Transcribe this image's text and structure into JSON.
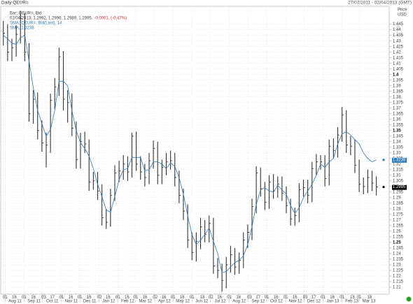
{
  "chart_data": {
    "type": "hlc",
    "title": "Daily QEUR=",
    "date_range": "27/07/2011 - 02/04/2013 (GMT)",
    "y_axis_title": "Price",
    "y_axis_unit": "USD",
    "legend": {
      "bar": "Bar; QEUR=, Bid",
      "quote": "01/04/2013, 1.2992, 1.2996, 1.2989, 1.2995,",
      "change": "-0.0061, (-0.47%)",
      "ma": "SMA; QEUR=, Bid(Last), 14",
      "ma_value": "SMA, 1.3238"
    },
    "x": [
      "2011-07-29",
      "2011-08-05",
      "2011-08-12",
      "2011-08-19",
      "2011-08-26",
      "2011-09-02",
      "2011-09-09",
      "2011-09-16",
      "2011-09-23",
      "2011-09-30",
      "2011-10-07",
      "2011-10-14",
      "2011-10-21",
      "2011-10-28",
      "2011-11-04",
      "2011-11-11",
      "2011-11-18",
      "2011-11-25",
      "2011-12-02",
      "2011-12-09",
      "2011-12-16",
      "2011-12-23",
      "2011-12-30",
      "2012-01-06",
      "2012-01-13",
      "2012-01-20",
      "2012-01-27",
      "2012-02-03",
      "2012-02-10",
      "2012-02-17",
      "2012-02-24",
      "2012-03-02",
      "2012-03-09",
      "2012-03-16",
      "2012-03-23",
      "2012-03-30",
      "2012-04-06",
      "2012-04-13",
      "2012-04-20",
      "2012-04-27",
      "2012-05-04",
      "2012-05-11",
      "2012-05-18",
      "2012-05-25",
      "2012-06-01",
      "2012-06-08",
      "2012-06-15",
      "2012-06-22",
      "2012-06-29",
      "2012-07-06",
      "2012-07-13",
      "2012-07-20",
      "2012-07-27",
      "2012-08-03",
      "2012-08-10",
      "2012-08-17",
      "2012-08-24",
      "2012-08-31",
      "2012-09-07",
      "2012-09-14",
      "2012-09-21",
      "2012-09-28",
      "2012-10-05",
      "2012-10-12",
      "2012-10-19",
      "2012-10-26",
      "2012-11-02",
      "2012-11-09",
      "2012-11-16",
      "2012-11-23",
      "2012-11-30",
      "2012-12-07",
      "2012-12-14",
      "2012-12-21",
      "2012-12-28",
      "2013-01-04",
      "2013-01-11",
      "2013-01-18",
      "2013-01-25",
      "2013-02-01",
      "2013-02-08",
      "2013-02-15",
      "2013-02-22",
      "2013-03-01",
      "2013-03-08",
      "2013-03-15",
      "2013-03-22",
      "2013-03-29"
    ],
    "series": [
      {
        "color": "#333333",
        "high": [
          1.448,
          1.445,
          1.432,
          1.444,
          1.457,
          1.455,
          1.428,
          1.386,
          1.384,
          1.359,
          1.348,
          1.383,
          1.397,
          1.424,
          1.421,
          1.386,
          1.383,
          1.358,
          1.348,
          1.349,
          1.342,
          1.313,
          1.313,
          1.302,
          1.28,
          1.298,
          1.319,
          1.323,
          1.328,
          1.327,
          1.348,
          1.349,
          1.327,
          1.32,
          1.33,
          1.341,
          1.34,
          1.324,
          1.33,
          1.332,
          1.33,
          1.314,
          1.298,
          1.284,
          1.259,
          1.259,
          1.272,
          1.27,
          1.274,
          1.272,
          1.236,
          1.231,
          1.237,
          1.247,
          1.245,
          1.241,
          1.259,
          1.266,
          1.289,
          1.318,
          1.317,
          1.304,
          1.31,
          1.311,
          1.309,
          1.309,
          1.3,
          1.289,
          1.281,
          1.303,
          1.306,
          1.306,
          1.322,
          1.329,
          1.328,
          1.328,
          1.342,
          1.343,
          1.353,
          1.371,
          1.368,
          1.345,
          1.342,
          1.324,
          1.308,
          1.315,
          1.314,
          1.309
        ],
        "low": [
          1.426,
          1.412,
          1.412,
          1.416,
          1.428,
          1.412,
          1.358,
          1.356,
          1.342,
          1.331,
          1.317,
          1.33,
          1.369,
          1.381,
          1.368,
          1.357,
          1.345,
          1.316,
          1.316,
          1.33,
          1.296,
          1.297,
          1.288,
          1.265,
          1.262,
          1.264,
          1.287,
          1.304,
          1.306,
          1.305,
          1.308,
          1.314,
          1.306,
          1.3,
          1.302,
          1.316,
          1.302,
          1.302,
          1.31,
          1.315,
          1.3,
          1.285,
          1.27,
          1.245,
          1.234,
          1.233,
          1.244,
          1.25,
          1.25,
          1.222,
          1.218,
          1.206,
          1.209,
          1.223,
          1.221,
          1.222,
          1.227,
          1.245,
          1.252,
          1.276,
          1.291,
          1.279,
          1.28,
          1.289,
          1.29,
          1.287,
          1.276,
          1.265,
          1.265,
          1.268,
          1.291,
          1.285,
          1.286,
          1.31,
          1.315,
          1.3,
          1.301,
          1.325,
          1.326,
          1.34,
          1.33,
          1.328,
          1.312,
          1.295,
          1.293,
          1.294,
          1.296,
          1.292
        ],
        "close": [
          1.437,
          1.42,
          1.424,
          1.436,
          1.45,
          1.42,
          1.365,
          1.378,
          1.35,
          1.339,
          1.337,
          1.377,
          1.389,
          1.416,
          1.378,
          1.375,
          1.352,
          1.324,
          1.34,
          1.338,
          1.304,
          1.305,
          1.296,
          1.272,
          1.268,
          1.292,
          1.312,
          1.314,
          1.32,
          1.313,
          1.345,
          1.32,
          1.313,
          1.308,
          1.323,
          1.334,
          1.31,
          1.317,
          1.322,
          1.323,
          1.308,
          1.292,
          1.278,
          1.252,
          1.241,
          1.251,
          1.264,
          1.257,
          1.267,
          1.229,
          1.225,
          1.216,
          1.23,
          1.239,
          1.228,
          1.234,
          1.252,
          1.259,
          1.282,
          1.312,
          1.298,
          1.286,
          1.304,
          1.296,
          1.302,
          1.294,
          1.283,
          1.271,
          1.274,
          1.297,
          1.299,
          1.292,
          1.316,
          1.322,
          1.322,
          1.307,
          1.336,
          1.332,
          1.346,
          1.364,
          1.337,
          1.336,
          1.319,
          1.302,
          1.3,
          1.308,
          1.303,
          1.2995
        ]
      }
    ],
    "ma": {
      "color": "#2b7bb9",
      "values": [
        1.435,
        1.432,
        1.428,
        1.427,
        1.433,
        1.435,
        1.412,
        1.388,
        1.368,
        1.356,
        1.345,
        1.351,
        1.368,
        1.394,
        1.394,
        1.39,
        1.368,
        1.35,
        1.339,
        1.334,
        1.327,
        1.316,
        1.302,
        1.291,
        1.279,
        1.277,
        1.291,
        1.306,
        1.315,
        1.316,
        1.326,
        1.326,
        1.326,
        1.314,
        1.315,
        1.322,
        1.322,
        1.32,
        1.316,
        1.321,
        1.318,
        1.308,
        1.293,
        1.274,
        1.257,
        1.248,
        1.252,
        1.257,
        1.263,
        1.251,
        1.24,
        1.223,
        1.224,
        1.228,
        1.232,
        1.234,
        1.238,
        1.248,
        1.264,
        1.284,
        1.297,
        1.299,
        1.296,
        1.295,
        1.301,
        1.297,
        1.293,
        1.283,
        1.276,
        1.281,
        1.29,
        1.296,
        1.302,
        1.31,
        1.32,
        1.317,
        1.322,
        1.325,
        1.338,
        1.347,
        1.349,
        1.346,
        1.342,
        1.338,
        1.33,
        1.325,
        1.322,
        1.3238
      ]
    },
    "xlim": [
      "2011-07-27",
      "2013-04-03"
    ],
    "ylim": [
      1.2037,
      1.4604
    ],
    "yticks": [
      1.21,
      1.215,
      1.22,
      1.225,
      1.23,
      1.235,
      1.24,
      1.245,
      1.25,
      1.255,
      1.26,
      1.265,
      1.27,
      1.275,
      1.28,
      1.285,
      1.29,
      1.295,
      1.3,
      1.305,
      1.31,
      1.315,
      1.32,
      1.325,
      1.33,
      1.335,
      1.34,
      1.345,
      1.35,
      1.355,
      1.36,
      1.365,
      1.37,
      1.375,
      1.38,
      1.385,
      1.39,
      1.395,
      1.4,
      1.405,
      1.41,
      1.415,
      1.42,
      1.425,
      1.43,
      1.435,
      1.44,
      1.445
    ],
    "xticks": [
      {
        "value": "2011-08-01",
        "label": "Aug 11"
      },
      {
        "value": "2011-09-01",
        "label": "Sep 11"
      },
      {
        "value": "2011-10-01",
        "label": "Oct 11"
      },
      {
        "value": "2011-11-01",
        "label": "Nov 11"
      },
      {
        "value": "2011-12-01",
        "label": "Dec 11"
      },
      {
        "value": "2012-01-01",
        "label": "Jan 12"
      },
      {
        "value": "2012-02-01",
        "label": "Feb 12"
      },
      {
        "value": "2012-03-01",
        "label": "Mar 12"
      },
      {
        "value": "2012-04-01",
        "label": "Apr 12"
      },
      {
        "value": "2012-05-01",
        "label": "May 12"
      },
      {
        "value": "2012-06-01",
        "label": "Jun 12"
      },
      {
        "value": "2012-07-01",
        "label": "Jul 12"
      },
      {
        "value": "2012-08-01",
        "label": "Aug 12"
      },
      {
        "value": "2012-09-01",
        "label": "Sep 12"
      },
      {
        "value": "2012-10-01",
        "label": "Oct 12"
      },
      {
        "value": "2012-11-01",
        "label": "Nov 12"
      },
      {
        "value": "2012-12-01",
        "label": "Dec 12"
      },
      {
        "value": "2013-01-01",
        "label": "Jan 13"
      },
      {
        "value": "2013-02-01",
        "label": "Feb 13"
      },
      {
        "value": "2013-03-01",
        "label": "Mar 13"
      }
    ],
    "xticks_days": [
      {
        "value": "2011-08-01",
        "label": "01"
      },
      {
        "value": "2011-08-16",
        "label": "16"
      },
      {
        "value": "2011-09-01",
        "label": "01"
      },
      {
        "value": "2011-09-16",
        "label": "16"
      },
      {
        "value": "2011-10-03",
        "label": "03"
      },
      {
        "value": "2011-10-17",
        "label": "17"
      },
      {
        "value": "2011-11-01",
        "label": "01"
      },
      {
        "value": "2011-11-16",
        "label": "16"
      },
      {
        "value": "2011-12-01",
        "label": "01"
      },
      {
        "value": "2011-12-16",
        "label": "16"
      },
      {
        "value": "2012-01-02",
        "label": "02"
      },
      {
        "value": "2012-01-16",
        "label": "16"
      },
      {
        "value": "2012-02-01",
        "label": "01"
      },
      {
        "value": "2012-02-16",
        "label": "16"
      },
      {
        "value": "2012-03-01",
        "label": "01"
      },
      {
        "value": "2012-03-16",
        "label": "16"
      },
      {
        "value": "2012-04-02",
        "label": "02"
      },
      {
        "value": "2012-04-16",
        "label": "16"
      },
      {
        "value": "2012-05-01",
        "label": "01"
      },
      {
        "value": "2012-05-16",
        "label": "16"
      },
      {
        "value": "2012-06-01",
        "label": "01"
      },
      {
        "value": "2012-06-18",
        "label": "18"
      },
      {
        "value": "2012-07-02",
        "label": "02"
      },
      {
        "value": "2012-07-16",
        "label": "16"
      },
      {
        "value": "2012-08-01",
        "label": "01"
      },
      {
        "value": "2012-08-16",
        "label": "16"
      },
      {
        "value": "2012-09-03",
        "label": "03"
      },
      {
        "value": "2012-09-17",
        "label": "17"
      },
      {
        "value": "2012-10-01",
        "label": "01"
      },
      {
        "value": "2012-10-16",
        "label": "16"
      },
      {
        "value": "2012-11-01",
        "label": "01"
      },
      {
        "value": "2012-11-16",
        "label": "16"
      },
      {
        "value": "2012-12-03",
        "label": "03"
      },
      {
        "value": "2012-12-17",
        "label": "17"
      },
      {
        "value": "2013-01-01",
        "label": "01"
      },
      {
        "value": "2013-01-16",
        "label": "16"
      },
      {
        "value": "2013-02-01",
        "label": "01"
      },
      {
        "value": "2013-02-18",
        "label": "18"
      },
      {
        "value": "2013-03-01",
        "label": "01"
      },
      {
        "value": "2013-03-18",
        "label": "18"
      }
    ],
    "grid": true
  }
}
